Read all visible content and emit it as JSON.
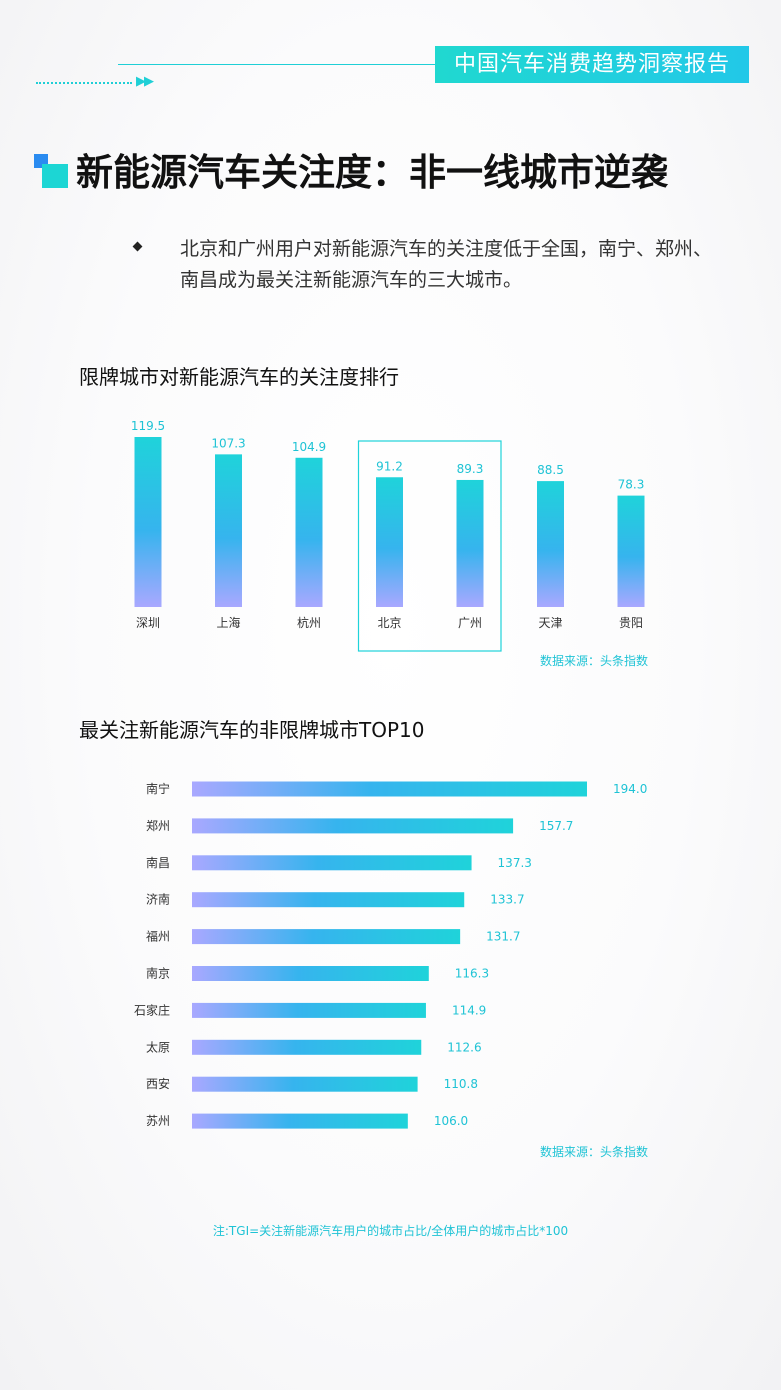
{
  "header": {
    "badge": "中国汽车消费趋势洞察报告",
    "arrows": "▶▶"
  },
  "title": "新能源汽车关注度：非一线城市逆袭",
  "summary": "北京和广州用户对新能源汽车的关注度低于全国，南宁、郑州、南昌成为最关注新能源汽车的三大城市。",
  "colors": {
    "accent": "#1fcfd6",
    "bar_top": "#1fd3da",
    "bar_bottom": "#a9a8ff",
    "text_blue": "#1fc3d5"
  },
  "chart_data": [
    {
      "type": "bar",
      "title": "限牌城市对新能源汽车的关注度排行",
      "categories": [
        "深圳",
        "上海",
        "杭州",
        "北京",
        "广州",
        "天津",
        "贵阳"
      ],
      "values": [
        119.5,
        107.3,
        104.9,
        91.2,
        89.3,
        88.5,
        78.3
      ],
      "highlighted": [
        "北京",
        "广州"
      ],
      "source": "数据来源：头条指数"
    },
    {
      "type": "bar",
      "orientation": "horizontal",
      "title": "最关注新能源汽车的非限牌城市TOP10",
      "categories": [
        "南宁",
        "郑州",
        "南昌",
        "济南",
        "福州",
        "南京",
        "石家庄",
        "太原",
        "西安",
        "苏州"
      ],
      "values": [
        194.0,
        157.7,
        137.3,
        133.7,
        131.7,
        116.3,
        114.9,
        112.6,
        110.8,
        106.0
      ],
      "source": "数据来源：头条指数"
    }
  ],
  "note": "注:TGI=关注新能源汽车用户的城市占比/全体用户的城市占比*100"
}
